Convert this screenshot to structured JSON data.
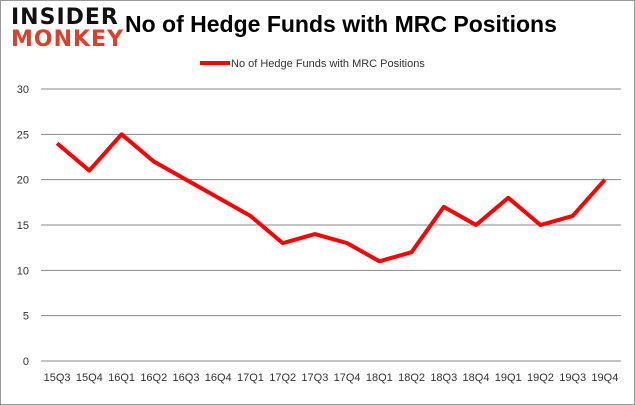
{
  "logo": {
    "line1": "INSIDER",
    "line2": "MONKEY"
  },
  "chart_data": {
    "type": "line",
    "title": "No of Hedge Funds with MRC Positions",
    "categories": [
      "15Q3",
      "15Q4",
      "16Q1",
      "16Q2",
      "16Q3",
      "16Q4",
      "17Q1",
      "17Q2",
      "17Q3",
      "17Q4",
      "18Q1",
      "18Q2",
      "18Q3",
      "18Q4",
      "19Q1",
      "19Q2",
      "19Q3",
      "19Q4"
    ],
    "series": [
      {
        "name": "No of Hedge Funds with MRC Positions",
        "values": [
          24,
          21,
          25,
          22,
          20,
          18,
          16,
          13,
          14,
          13,
          11,
          12,
          17,
          15,
          18,
          15,
          16,
          20
        ],
        "color": "#ff0000"
      }
    ],
    "ylim": [
      0,
      30
    ],
    "yticks": [
      0,
      5,
      10,
      15,
      20,
      25,
      30
    ],
    "grid": true,
    "legend": "top"
  }
}
